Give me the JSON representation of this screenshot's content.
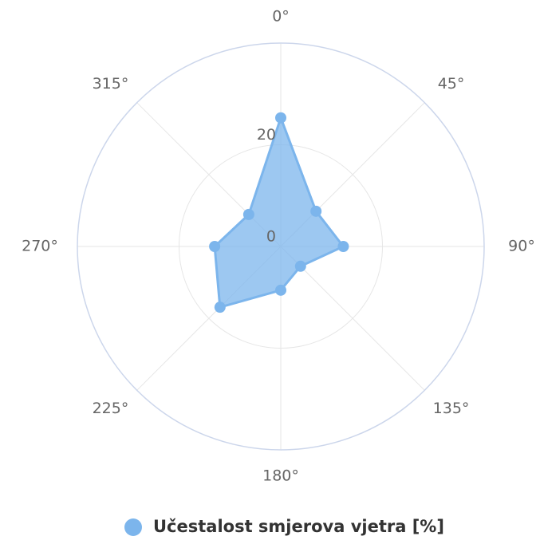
{
  "chart_data": {
    "type": "polar_area_line",
    "categories": [
      "0°",
      "45°",
      "90°",
      "135°",
      "180°",
      "225°",
      "270°",
      "315°"
    ],
    "series": [
      {
        "name": "Učestalost smjerova vjetra [%]",
        "color": "#7cb5ec",
        "values": [
          25.3,
          9.8,
          12.3,
          5.5,
          8.6,
          16.9,
          13,
          8.9
        ]
      }
    ],
    "ylim": [
      0,
      40
    ],
    "yticks": [
      0,
      20
    ],
    "grid": true,
    "legend": "bottom"
  }
}
